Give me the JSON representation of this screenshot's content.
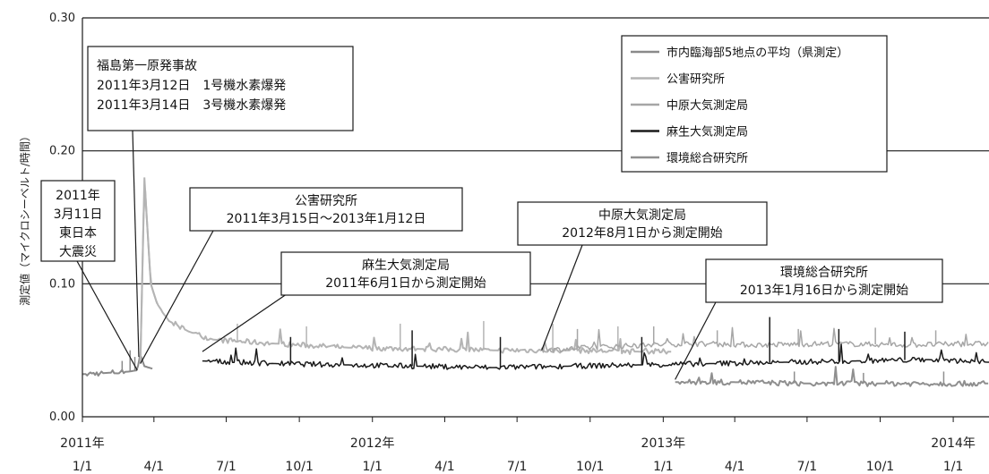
{
  "chart_data": {
    "type": "line",
    "ylabel": "測定値（マイクロシーベルト/時間）",
    "ylim": [
      0,
      0.3
    ],
    "y_ticks": [
      "0.00",
      "0.10",
      "0.20",
      "0.30"
    ],
    "xlim": [
      "2011-01-01",
      "2014-02-15"
    ],
    "x_tick_dates": [
      "2011-01-01",
      "2011-04-01",
      "2011-07-01",
      "2011-10-01",
      "2012-01-01",
      "2012-04-01",
      "2012-07-01",
      "2012-10-01",
      "2013-01-01",
      "2013-04-01",
      "2013-07-01",
      "2013-10-01",
      "2014-01-01"
    ],
    "x_tick_labels": [
      "1/1",
      "4/1",
      "7/1",
      "10/1",
      "1/1",
      "4/1",
      "7/1",
      "10/1",
      "1/1",
      "4/1",
      "7/1",
      "10/1",
      "1/1"
    ],
    "x_year_labels": [
      {
        "date": "2011-01-01",
        "label": "2011年"
      },
      {
        "date": "2012-01-01",
        "label": "2012年"
      },
      {
        "date": "2013-01-01",
        "label": "2013年"
      },
      {
        "date": "2014-01-01",
        "label": "2014年"
      }
    ],
    "grid": "horizontal",
    "legend_position": "top-right",
    "series": [
      {
        "name": "市内臨海部5地点の平均（県測定）",
        "color": "#8a8a8a",
        "width": 2,
        "points": [
          [
            "2011-01-01",
            0.032
          ],
          [
            "2011-02-01",
            0.033
          ],
          [
            "2011-03-01",
            0.034
          ],
          [
            "2011-03-11",
            0.035
          ],
          [
            "2011-03-15",
            0.048
          ],
          [
            "2011-03-16",
            0.045
          ],
          [
            "2011-03-20",
            0.038
          ],
          [
            "2011-03-31",
            0.036
          ]
        ],
        "spikes": [
          [
            "2011-02-20",
            0.042
          ],
          [
            "2011-03-02",
            0.05
          ],
          [
            "2011-03-08",
            0.045
          ],
          [
            "2011-03-13",
            0.04
          ],
          [
            "2011-03-15",
            0.05
          ]
        ]
      },
      {
        "name": "公害研究所",
        "color": "#b4b4b4",
        "width": 2,
        "points": [
          [
            "2011-03-15",
            0.04
          ],
          [
            "2011-03-20",
            0.18
          ],
          [
            "2011-03-24",
            0.14
          ],
          [
            "2011-03-28",
            0.1
          ],
          [
            "2011-04-05",
            0.085
          ],
          [
            "2011-04-20",
            0.072
          ],
          [
            "2011-05-15",
            0.064
          ],
          [
            "2011-06-15",
            0.058
          ],
          [
            "2011-09-01",
            0.055
          ],
          [
            "2011-12-01",
            0.052
          ],
          [
            "2012-03-01",
            0.051
          ],
          [
            "2012-06-01",
            0.05
          ],
          [
            "2012-09-01",
            0.05
          ],
          [
            "2012-12-01",
            0.049
          ],
          [
            "2013-01-12",
            0.049
          ]
        ],
        "spikes": [
          [
            "2011-07-15",
            0.07
          ],
          [
            "2011-10-10",
            0.068
          ],
          [
            "2012-02-05",
            0.07
          ],
          [
            "2012-05-20",
            0.072
          ],
          [
            "2012-08-15",
            0.07
          ],
          [
            "2012-11-05",
            0.068
          ]
        ]
      },
      {
        "name": "中原大気測定局",
        "color": "#a6a6a6",
        "width": 1.5,
        "points": [
          [
            "2012-08-01",
            0.05
          ],
          [
            "2012-11-01",
            0.053
          ],
          [
            "2013-02-01",
            0.055
          ],
          [
            "2013-05-01",
            0.054
          ],
          [
            "2013-08-01",
            0.055
          ],
          [
            "2013-11-01",
            0.054
          ],
          [
            "2014-02-15",
            0.055
          ]
        ],
        "spikes": [
          [
            "2012-09-15",
            0.066
          ],
          [
            "2012-12-20",
            0.068
          ],
          [
            "2013-03-10",
            0.065
          ],
          [
            "2013-06-20",
            0.066
          ],
          [
            "2013-09-25",
            0.067
          ],
          [
            "2013-12-10",
            0.065
          ]
        ]
      },
      {
        "name": "麻生大気測定局",
        "color": "#1a1a1a",
        "width": 1.5,
        "points": [
          [
            "2011-06-01",
            0.042
          ],
          [
            "2011-09-01",
            0.04
          ],
          [
            "2011-12-01",
            0.039
          ],
          [
            "2012-03-01",
            0.038
          ],
          [
            "2012-06-01",
            0.037
          ],
          [
            "2012-09-01",
            0.038
          ],
          [
            "2012-12-01",
            0.039
          ],
          [
            "2013-03-01",
            0.04
          ],
          [
            "2013-06-01",
            0.041
          ],
          [
            "2013-09-01",
            0.042
          ],
          [
            "2013-12-01",
            0.043
          ],
          [
            "2014-02-15",
            0.041
          ]
        ],
        "spikes": [
          [
            "2011-09-20",
            0.06
          ],
          [
            "2012-02-20",
            0.065
          ],
          [
            "2012-06-10",
            0.06
          ],
          [
            "2012-12-05",
            0.06
          ],
          [
            "2013-05-15",
            0.075
          ],
          [
            "2013-08-10",
            0.066
          ],
          [
            "2013-11-01",
            0.064
          ]
        ]
      },
      {
        "name": "環境総合研究所",
        "color": "#8f8f8f",
        "width": 2,
        "points": [
          [
            "2013-01-16",
            0.026
          ],
          [
            "2013-04-01",
            0.026
          ],
          [
            "2013-07-01",
            0.025
          ],
          [
            "2013-10-01",
            0.025
          ],
          [
            "2014-02-15",
            0.025
          ]
        ],
        "spikes": [
          [
            "2013-06-15",
            0.034
          ],
          [
            "2013-09-10",
            0.033
          ],
          [
            "2013-12-20",
            0.034
          ]
        ]
      }
    ],
    "annotations": [
      {
        "lines": [
          "福島第一原発事故",
          "2011年3月12日　1号機水素爆発",
          "2011年3月14日　3号機水素爆発"
        ],
        "target": [
          "2011-03-13",
          0.045
        ]
      },
      {
        "lines": [
          "2011年",
          "3月11日",
          "東日本",
          "大震災"
        ],
        "target": [
          "2011-03-11",
          0.035
        ]
      },
      {
        "lines": [
          "公害研究所",
          "2011年3月15日～2013年1月12日"
        ],
        "target": [
          "2011-03-15",
          0.04
        ]
      },
      {
        "lines": [
          "麻生大気測定局",
          "2011年6月1日から測定開始"
        ],
        "target": [
          "2011-06-01",
          0.049
        ]
      },
      {
        "lines": [
          "中原大気測定局",
          "2012年8月1日から測定開始"
        ],
        "target": [
          "2012-08-01",
          0.05
        ]
      },
      {
        "lines": [
          "環境総合研究所",
          "2013年1月16日から測定開始"
        ],
        "target": [
          "2013-01-16",
          0.028
        ]
      }
    ]
  }
}
